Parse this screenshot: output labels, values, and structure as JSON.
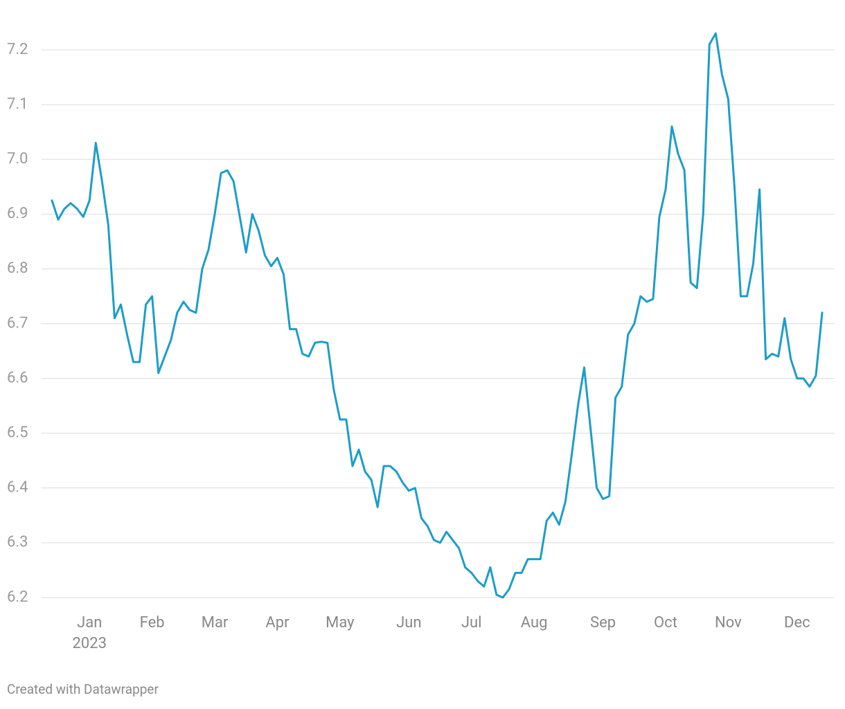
{
  "chart_data": {
    "type": "line",
    "categories": [
      null,
      null,
      null,
      null,
      null,
      null,
      "Jan",
      null,
      null,
      null,
      null,
      null,
      null,
      null,
      null,
      null,
      "Feb",
      null,
      null,
      null,
      null,
      null,
      null,
      null,
      null,
      null,
      "Mar",
      null,
      null,
      null,
      null,
      null,
      null,
      null,
      null,
      null,
      "Apr",
      null,
      null,
      null,
      null,
      null,
      null,
      null,
      null,
      null,
      "May",
      null,
      null,
      null,
      null,
      null,
      null,
      null,
      null,
      null,
      null,
      "Jun",
      null,
      null,
      null,
      null,
      null,
      null,
      null,
      null,
      null,
      "Jul",
      null,
      null,
      null,
      null,
      null,
      null,
      null,
      null,
      null,
      "Aug",
      null,
      null,
      null,
      null,
      null,
      null,
      null,
      null,
      null,
      null,
      "Sep",
      null,
      null,
      null,
      null,
      null,
      null,
      null,
      null,
      null,
      "Oct",
      null,
      null,
      null,
      null,
      null,
      null,
      null,
      null,
      null,
      "Nov",
      null,
      null,
      null,
      null,
      null,
      null,
      null,
      null,
      null,
      null,
      "Dec",
      null,
      null,
      null,
      null
    ],
    "year_label": "2023",
    "series": [
      {
        "color": "#1b9dca",
        "values": [
          6.925,
          6.89,
          6.91,
          6.92,
          6.91,
          6.895,
          6.925,
          7.03,
          6.96,
          6.88,
          6.71,
          6.735,
          6.68,
          6.63,
          6.63,
          6.735,
          6.75,
          6.61,
          6.64,
          6.67,
          6.72,
          6.74,
          6.725,
          6.72,
          6.8,
          6.835,
          6.9,
          6.975,
          6.98,
          6.96,
          6.895,
          6.83,
          6.9,
          6.87,
          6.825,
          6.805,
          6.82,
          6.79,
          6.69,
          6.69,
          6.645,
          6.64,
          6.665,
          6.667,
          6.665,
          6.58,
          6.525,
          6.525,
          6.44,
          6.47,
          6.43,
          6.415,
          6.365,
          6.44,
          6.44,
          6.43,
          6.41,
          6.395,
          6.4,
          6.345,
          6.33,
          6.305,
          6.3,
          6.32,
          6.305,
          6.29,
          6.255,
          6.245,
          6.23,
          6.22,
          6.255,
          6.205,
          6.2,
          6.215,
          6.245,
          6.245,
          6.27,
          6.27,
          6.27,
          6.34,
          6.355,
          6.333,
          6.375,
          6.46,
          6.55,
          6.62,
          6.51,
          6.4,
          6.38,
          6.385,
          6.565,
          6.585,
          6.68,
          6.7,
          6.75,
          6.74,
          6.745,
          6.895,
          6.945,
          7.06,
          7.01,
          6.98,
          6.775,
          6.765,
          6.9,
          7.21,
          7.23,
          7.155,
          7.11,
          6.95,
          6.75,
          6.75,
          6.81,
          6.945,
          6.635,
          6.645,
          6.64,
          6.71,
          6.635,
          6.6,
          6.6,
          6.585,
          6.605,
          6.72
        ]
      }
    ],
    "ylim": [
      6.18,
      7.27
    ],
    "yticks": [
      {
        "value": 6.2,
        "label": "6.2"
      },
      {
        "value": 6.3,
        "label": "6.3"
      },
      {
        "value": 6.4,
        "label": "6.4"
      },
      {
        "value": 6.5,
        "label": "6.5"
      },
      {
        "value": 6.6,
        "label": "6.6"
      },
      {
        "value": 6.7,
        "label": "6.7"
      },
      {
        "value": 6.8,
        "label": "6.8"
      },
      {
        "value": 6.9,
        "label": "6.9"
      },
      {
        "value": 7.0,
        "label": "7.0"
      },
      {
        "value": 7.1,
        "label": "7.1"
      },
      {
        "value": 7.2,
        "label": "7.2"
      }
    ],
    "grid": true,
    "credit": "Created with Datawrapper"
  }
}
